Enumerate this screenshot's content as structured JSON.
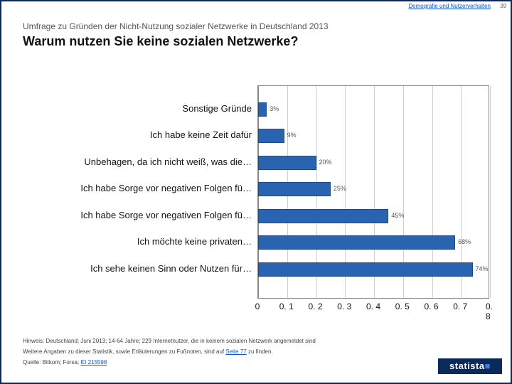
{
  "page_number": "39",
  "top_link": "Demografie und Nutzerverhalten",
  "subtitle": "Umfrage zu Gründen der Nicht-Nutzung sozialer Netzwerke in Deutschland 2013",
  "title": "Warum nutzen Sie keine sozialen Netzwerke?",
  "chart": {
    "type": "bar",
    "orientation": "horizontal",
    "xlim": [
      0,
      0.8
    ],
    "xtick_step": 0.1,
    "xticks": [
      "0",
      "0. 1",
      "0. 2",
      "0. 3",
      "0. 4",
      "0. 5",
      "0. 6",
      "0. 7",
      "0. 8"
    ],
    "bar_color": "#2a63b0",
    "bar_border": "#1c4a8a",
    "grid_color": "#cfcfcf",
    "background_color": "#ffffff",
    "label_fontsize": 13,
    "value_fontsize": 9,
    "bars": [
      {
        "label": "Sonstige Gründe",
        "value": 0.03,
        "value_label": "3%"
      },
      {
        "label": "Ich habe keine Zeit dafür",
        "value": 0.09,
        "value_label": "9%"
      },
      {
        "label": "Unbehagen, da ich nicht weiß, was die…",
        "value": 0.2,
        "value_label": "20%"
      },
      {
        "label": "Ich habe Sorge vor negativen Folgen fü…",
        "value": 0.25,
        "value_label": "25%"
      },
      {
        "label": "Ich habe Sorge vor negativen Folgen fü…",
        "value": 0.45,
        "value_label": "45%"
      },
      {
        "label": "Ich möchte keine privaten…",
        "value": 0.68,
        "value_label": "68%"
      },
      {
        "label": "Ich sehe keinen Sinn oder Nutzen für…",
        "value": 0.74,
        "value_label": "74%"
      }
    ]
  },
  "footer": {
    "hint": "Hinweis: Deutschland; Juni 2013; 14-64 Jahre; 229 Internetnutzer, die in keinem sozialen Netzwerk angemeldet sind",
    "more_prefix": "Weitere Angaben zu dieser Statistik, sowie Erläuterungen zu Fußnoten, sind auf ",
    "more_link": "Seite 77",
    "more_suffix": " zu finden.",
    "source_prefix": "Quelle: Bitkom; Forsa; ",
    "source_link": "ID 215598"
  },
  "logo_text": "statista",
  "colors": {
    "frame": "#0a2a5c",
    "link": "#1155cc",
    "text": "#111111",
    "muted": "#555555"
  }
}
